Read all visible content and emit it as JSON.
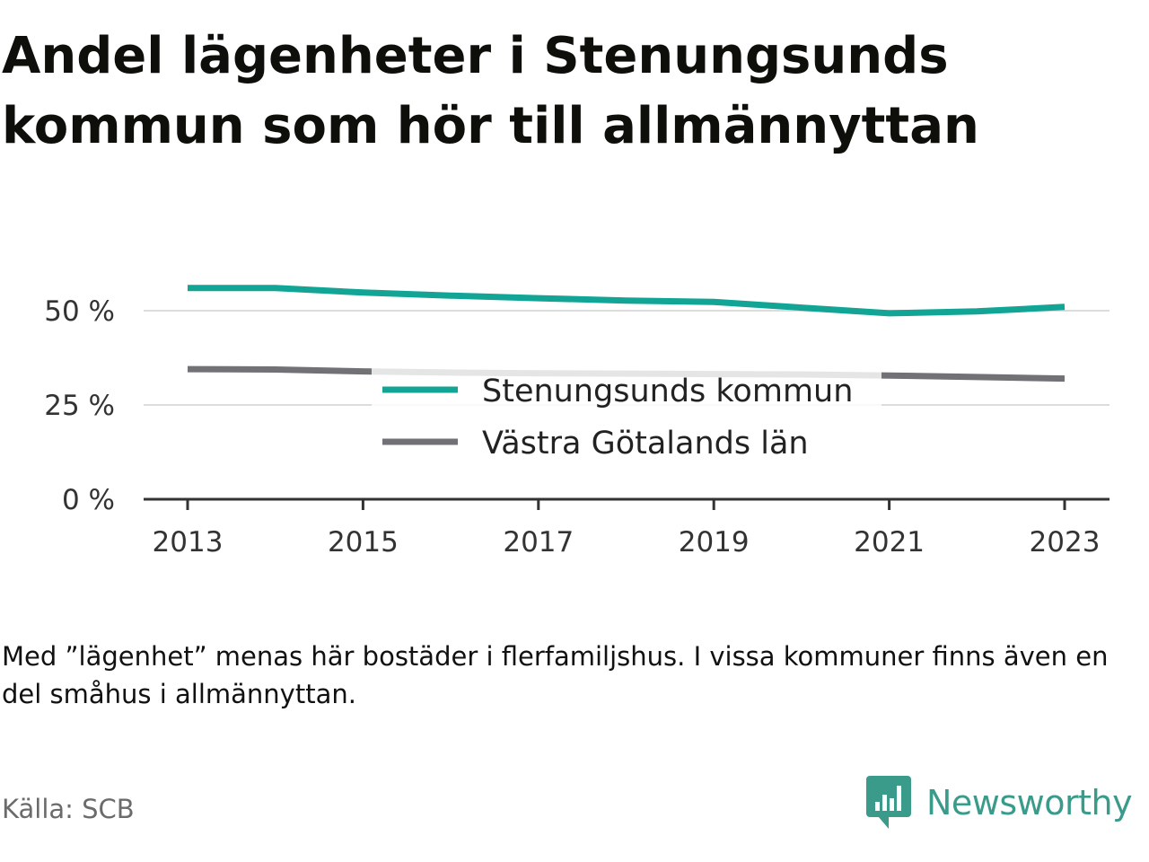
{
  "title": "Andel lägenheter i Stenungsunds kommun som hör till allmännyttan",
  "note": "Med ”lägenhet” menas här bostäder i flerfamiljshus. I vissa kommuner finns även en del småhus i allmännyttan.",
  "source": "Källa: SCB",
  "brand": {
    "name": "Newsworthy",
    "icon": "newsworthy-logo-icon",
    "color": "#3a9b8b"
  },
  "chart_data": {
    "type": "line",
    "title": "Andel lägenheter i Stenungsunds kommun som hör till allmännyttan",
    "xlabel": "",
    "ylabel": "",
    "x": [
      2013,
      2014,
      2015,
      2016,
      2017,
      2018,
      2019,
      2020,
      2021,
      2022,
      2023
    ],
    "x_ticks": [
      "2013",
      "2015",
      "2017",
      "2019",
      "2021",
      "2023"
    ],
    "y_ticks": [
      {
        "value": 0,
        "label": "0 %"
      },
      {
        "value": 25,
        "label": "25 %"
      },
      {
        "value": 50,
        "label": "50 %"
      }
    ],
    "ylim": [
      0,
      55
    ],
    "grid": true,
    "legend_position": "center",
    "series": [
      {
        "name": "Stenungsunds kommun",
        "color": "#12a596",
        "values": [
          56.0,
          56.0,
          54.8,
          54.0,
          53.3,
          52.7,
          52.3,
          50.8,
          49.3,
          49.8,
          51.0
        ]
      },
      {
        "name": "Västra Götalands län",
        "color": "#727276",
        "values": [
          34.5,
          34.4,
          33.9,
          33.6,
          33.4,
          33.3,
          33.2,
          33.1,
          32.8,
          32.4,
          32.0
        ]
      }
    ]
  }
}
